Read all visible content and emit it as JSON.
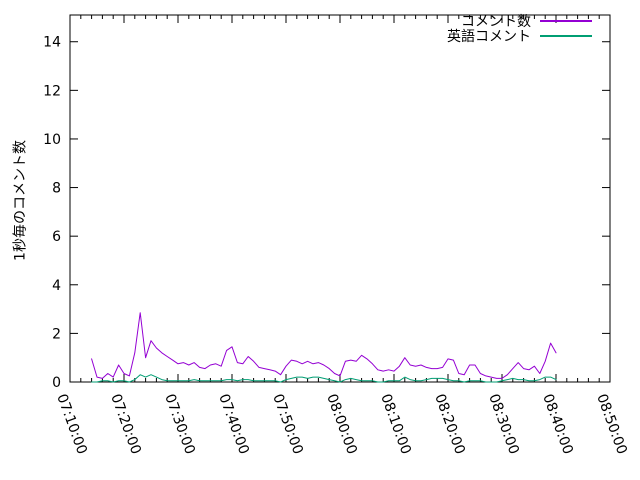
{
  "chart_data": {
    "type": "line",
    "title": "",
    "xlabel": "",
    "ylabel": "1秒毎のコメント数",
    "grid": false,
    "legend_position": "top-right-inside",
    "ylim": [
      0,
      15.1
    ],
    "y_tick_labels": [
      "0",
      "2",
      "4",
      "6",
      "8",
      "10",
      "12",
      "14"
    ],
    "y_tick_values": [
      0,
      2,
      4,
      6,
      8,
      10,
      12,
      14
    ],
    "x_range_minutes": [
      0,
      100
    ],
    "x_major_every_minutes": 10,
    "x_minor_every_minutes": 2,
    "x_tick_labels": [
      "07:10:00",
      "07:20:00",
      "07:30:00",
      "07:40:00",
      "07:50:00",
      "08:00:00",
      "08:10:00",
      "08:20:00",
      "08:30:00",
      "08:40:00",
      "08:50:00"
    ],
    "x_start_minute": 4,
    "x_step_minute": 1,
    "series": [
      {
        "name": "コメント数",
        "color": "#9400d3",
        "values": [
          0.95,
          0.2,
          0.15,
          0.35,
          0.2,
          0.7,
          0.35,
          0.25,
          1.2,
          2.85,
          1.0,
          1.7,
          1.4,
          1.2,
          1.05,
          0.9,
          0.75,
          0.8,
          0.7,
          0.8,
          0.6,
          0.55,
          0.7,
          0.75,
          0.65,
          1.3,
          1.45,
          0.8,
          0.75,
          1.05,
          0.85,
          0.6,
          0.55,
          0.5,
          0.45,
          0.3,
          0.65,
          0.9,
          0.85,
          0.75,
          0.85,
          0.75,
          0.8,
          0.7,
          0.55,
          0.35,
          0.25,
          0.85,
          0.9,
          0.85,
          1.1,
          0.95,
          0.75,
          0.5,
          0.45,
          0.5,
          0.45,
          0.65,
          1.0,
          0.7,
          0.65,
          0.7,
          0.6,
          0.55,
          0.55,
          0.6,
          0.95,
          0.9,
          0.35,
          0.3,
          0.7,
          0.7,
          0.35,
          0.25,
          0.2,
          0.15,
          0.15,
          0.3,
          0.55,
          0.8,
          0.55,
          0.5,
          0.65,
          0.35,
          0.85,
          1.6,
          1.2
        ]
      },
      {
        "name": "英語コメント",
        "color": "#009e73",
        "values": [
          0,
          0,
          0.05,
          0.05,
          0,
          0.05,
          0.05,
          0,
          0.1,
          0.3,
          0.2,
          0.3,
          0.2,
          0.1,
          0.05,
          0.05,
          0.05,
          0.05,
          0.05,
          0.1,
          0.05,
          0.05,
          0.05,
          0.05,
          0.05,
          0.1,
          0.1,
          0.05,
          0.1,
          0.1,
          0.05,
          0.05,
          0.05,
          0.05,
          0.05,
          0,
          0.1,
          0.15,
          0.2,
          0.2,
          0.15,
          0.2,
          0.2,
          0.15,
          0.1,
          0.05,
          0,
          0.1,
          0.15,
          0.1,
          0.05,
          0.05,
          0.05,
          0,
          0,
          0.05,
          0.05,
          0.05,
          0.2,
          0.1,
          0.05,
          0.05,
          0.1,
          0.15,
          0.15,
          0.15,
          0.1,
          0.05,
          0.05,
          0,
          0.05,
          0.05,
          0.05,
          0,
          0,
          0,
          0.05,
          0.1,
          0.15,
          0.1,
          0.1,
          0.05,
          0.05,
          0.1,
          0.2,
          0.2,
          0.1
        ]
      }
    ],
    "colors": {
      "axis": "#000000",
      "background": "#ffffff",
      "text": "#000000"
    }
  }
}
